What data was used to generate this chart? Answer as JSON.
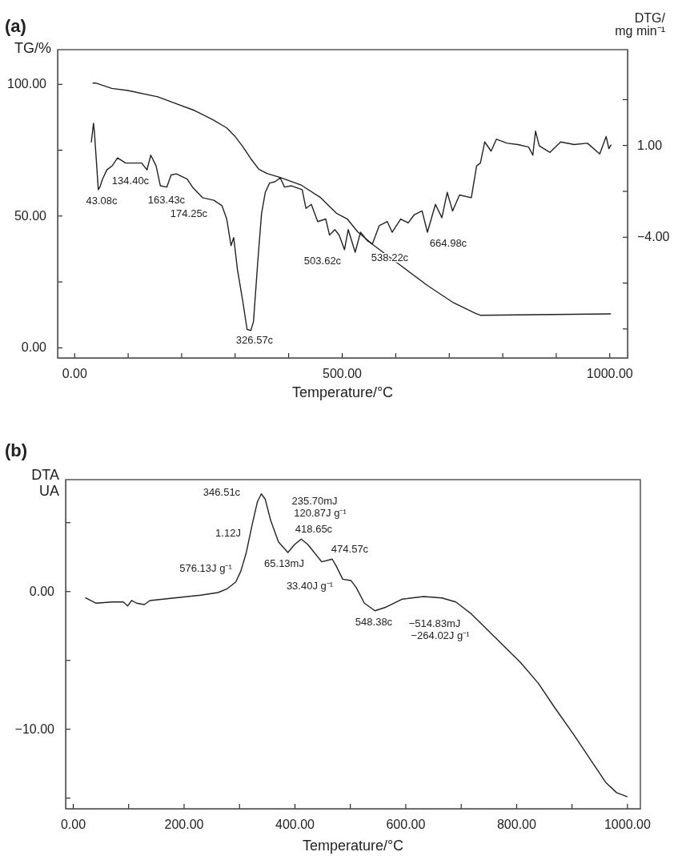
{
  "chart_data": [
    {
      "type": "line",
      "title": "(a)",
      "xlabel": "Temperature/°C",
      "ylabel": "TG/%",
      "y2label": "DTG/\nmg min⁻¹",
      "xlim": [
        -31,
        1034
      ],
      "ylim": [
        -4,
        113
      ],
      "y2lim": [
        -10.6,
        6.2
      ],
      "xticks": [
        {
          "value": 0,
          "label": "0.00"
        },
        {
          "value": 100,
          "label": null
        },
        {
          "value": 200,
          "label": null
        },
        {
          "value": 300,
          "label": null
        },
        {
          "value": 400,
          "label": null
        },
        {
          "value": 500,
          "label": "500.00"
        },
        {
          "value": 600,
          "label": null
        },
        {
          "value": 700,
          "label": null
        },
        {
          "value": 800,
          "label": null
        },
        {
          "value": 900,
          "label": null
        },
        {
          "value": 1000,
          "label": "1000.00"
        }
      ],
      "yticks": [
        {
          "value": 0,
          "label": "0.00"
        },
        {
          "value": 25,
          "label": null
        },
        {
          "value": 50,
          "label": "50.00"
        },
        {
          "value": 75,
          "label": null
        },
        {
          "value": 100,
          "label": "100.00"
        }
      ],
      "y2ticks": [
        {
          "value": 3.5,
          "label": null
        },
        {
          "value": 1,
          "label": "1.00"
        },
        {
          "value": -1.5,
          "label": null
        },
        {
          "value": -4,
          "label": "−4.00"
        },
        {
          "value": -6.5,
          "label": null
        },
        {
          "value": -9,
          "label": null
        }
      ],
      "line_style": "solid",
      "series": [
        {
          "color": "#222222",
          "x": [
            35,
            41,
            70,
            100,
            156,
            185,
            225,
            260,
            285,
            300,
            315,
            330,
            345,
            360,
            385,
            425,
            460,
            490,
            510,
            530,
            560,
            610,
            660,
            709,
            750,
            759,
            860,
            1002
          ],
          "values": [
            100.3,
            100.3,
            98.3,
            97.5,
            95.1,
            92.9,
            89.9,
            86.3,
            83.3,
            80.2,
            76.2,
            71.6,
            67.6,
            66.0,
            64.5,
            61.5,
            56.9,
            50.9,
            48.8,
            43.8,
            38.7,
            31.1,
            23.5,
            16.9,
            12.9,
            12.2,
            12.4,
            12.7
          ]
        },
        {
          "color": "#222222",
          "axis": "y2",
          "x": [
            32,
            36,
            38,
            45,
            48,
            53,
            61,
            71,
            81,
            96,
            111,
            126,
            136,
            143,
            153,
            161,
            173,
            181,
            191,
            201,
            211,
            221,
            240,
            261,
            276,
            285,
            293,
            298,
            305,
            315,
            323,
            330,
            335,
            343,
            350,
            357,
            365,
            375,
            385,
            393,
            406,
            426,
            433,
            443,
            455,
            470,
            477,
            487,
            495,
            505,
            512,
            525,
            535,
            547,
            557,
            570,
            585,
            594,
            610,
            624,
            635,
            650,
            660,
            675,
            687,
            697,
            707,
            720,
            742,
            752,
            759,
            767,
            779,
            789,
            809,
            829,
            849,
            857,
            862,
            869,
            889,
            909,
            934,
            959,
            982,
            994,
            999,
            1003
          ],
          "values": [
            1.17,
            2.19,
            1.61,
            -1.43,
            -1.29,
            -0.85,
            -0.35,
            -0.13,
            0.3,
            0.02,
            0.02,
            0.02,
            -0.35,
            0.45,
            -0.13,
            -1.22,
            -1.29,
            -0.63,
            -0.57,
            -0.71,
            -0.85,
            -1.29,
            -1.87,
            -2.01,
            -2.3,
            -3.03,
            -4.48,
            -4.04,
            -5.78,
            -7.52,
            -9.04,
            -9.11,
            -8.61,
            -5.35,
            -2.74,
            -1.58,
            -1.07,
            -1.0,
            -0.78,
            -1.29,
            -1.22,
            -1.43,
            -2.45,
            -2.23,
            -3.17,
            -3.03,
            -3.9,
            -3.61,
            -3.9,
            -4.7,
            -3.61,
            -4.84,
            -3.75,
            -4.19,
            -4.4,
            -3.39,
            -3.17,
            -3.75,
            -3.03,
            -3.24,
            -2.81,
            -2.59,
            -3.75,
            -2.23,
            -2.96,
            -1.58,
            -2.59,
            -1.72,
            -1.87,
            -0.13,
            0.02,
            1.17,
            0.67,
            1.32,
            1.1,
            1.03,
            0.89,
            0.45,
            1.76,
            0.96,
            0.6,
            1.17,
            1.03,
            1.1,
            0.52,
            1.47,
            0.81,
            1.0
          ]
        }
      ],
      "annotations": [
        "43.08c",
        "134.40c",
        "163.43c",
        "174.25c",
        "326.57c",
        "503.62c",
        "538.22c",
        "664.98c"
      ]
    },
    {
      "type": "line",
      "title": "(b)",
      "xlabel": "Temperature/°C",
      "ylabel": "DTA\nUA",
      "xlim": [
        -13,
        1024
      ],
      "ylim": [
        -15.8,
        8.1
      ],
      "xticks": [
        {
          "value": 0,
          "label": "0.00"
        },
        {
          "value": 100,
          "label": null
        },
        {
          "value": 200,
          "label": "200.00"
        },
        {
          "value": 300,
          "label": null
        },
        {
          "value": 400,
          "label": "400.00"
        },
        {
          "value": 500,
          "label": null
        },
        {
          "value": 600,
          "label": "600.00"
        },
        {
          "value": 700,
          "label": null
        },
        {
          "value": 800,
          "label": "800.00"
        },
        {
          "value": 900,
          "label": null
        },
        {
          "value": 1000,
          "label": "1000.00"
        }
      ],
      "yticks": [
        {
          "value": 5,
          "label": null
        },
        {
          "value": 0,
          "label": "0.00"
        },
        {
          "value": -5,
          "label": null
        },
        {
          "value": -10,
          "label": "−10.00"
        },
        {
          "value": -15,
          "label": null
        }
      ],
      "line_style": "solid",
      "series": [
        {
          "color": "#222222",
          "x": [
            23,
            42,
            71,
            91,
            99,
            106,
            115,
            129,
            139,
            183,
            231,
            262,
            279,
            294,
            303,
            313,
            323,
            333,
            340,
            347,
            357,
            371,
            388,
            400,
            412,
            424,
            449,
            468,
            475,
            487,
            502,
            511,
            526,
            545,
            565,
            594,
            633,
            666,
            691,
            719,
            763,
            807,
            840,
            869,
            903,
            932,
            961,
            981,
            1000
          ],
          "values": [
            -0.49,
            -0.87,
            -0.78,
            -0.78,
            -1.07,
            -0.68,
            -0.87,
            -0.97,
            -0.68,
            -0.49,
            -0.29,
            -0.1,
            0.19,
            0.67,
            1.45,
            2.81,
            4.74,
            6.49,
            7.07,
            6.69,
            5.13,
            3.58,
            2.81,
            3.39,
            3.78,
            3.39,
            2.13,
            2.33,
            1.84,
            0.87,
            0.77,
            0.29,
            -0.87,
            -1.42,
            -1.16,
            -0.58,
            -0.39,
            -0.49,
            -0.78,
            -1.65,
            -3.4,
            -5.14,
            -6.69,
            -8.43,
            -10.37,
            -12.12,
            -13.86,
            -14.63,
            -14.92
          ]
        }
      ],
      "annotations": [
        "346.51c",
        "1.12J",
        "576.13J g⁻¹",
        "235.70mJ",
        "120.87J g⁻¹",
        "418.65c",
        "65.13mJ",
        "474.57c",
        "33.40J g⁻¹",
        "548.38c",
        "−514.83mJ",
        "−264.02J g⁻¹"
      ]
    }
  ]
}
